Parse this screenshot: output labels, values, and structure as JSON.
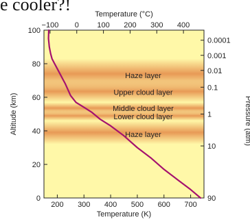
{
  "caption": {
    "text": "e cooler?!"
  },
  "chart_data": {
    "type": "line",
    "x_bottom": {
      "label": "Temperature (K)",
      "range": [
        150,
        750
      ],
      "ticks": [
        200,
        300,
        400,
        500,
        600,
        700
      ],
      "tick_labels": [
        "200",
        "300",
        "400",
        "500",
        "600",
        "700"
      ]
    },
    "x_top": {
      "label": "Temperature (°C)",
      "range": [
        -123,
        477
      ],
      "ticks": [
        -100,
        0,
        100,
        200,
        300,
        400
      ],
      "tick_labels": [
        "−100",
        "0",
        "100",
        "200",
        "300",
        "400"
      ]
    },
    "y_left": {
      "label": "Altitude (km)",
      "range": [
        0,
        100
      ],
      "ticks": [
        0,
        20,
        40,
        60,
        80,
        100
      ],
      "tick_labels": [
        "0",
        "20",
        "40",
        "60",
        "80",
        "100"
      ]
    },
    "y_right": {
      "label": "Pressure (atm)",
      "ticks": [
        {
          "altitude": 94,
          "label": "0.0001"
        },
        {
          "altitude": 85,
          "label": "0.001"
        },
        {
          "altitude": 76,
          "label": "0.01"
        },
        {
          "altitude": 66,
          "label": "0.1"
        },
        {
          "altitude": 50,
          "label": "1"
        },
        {
          "altitude": 31,
          "label": "10"
        },
        {
          "altitude": 0,
          "label": "90"
        }
      ]
    },
    "layers": [
      {
        "label": "Haze layer",
        "altitude_label": 73,
        "band": [
          65,
          83
        ]
      },
      {
        "label": "Upper cloud layer",
        "altitude_label": 63,
        "band": [
          57,
          70
        ]
      },
      {
        "label": "Middle cloud layer",
        "altitude_label": 53.5,
        "band": [
          50,
          57
        ]
      },
      {
        "label": "Lower cloud layer",
        "altitude_label": 48.5,
        "band": [
          46,
          52
        ]
      },
      {
        "label": "Haze layer",
        "altitude_label": 38,
        "band": [
          32,
          46
        ]
      }
    ],
    "series": [
      {
        "x": [
          168,
          167,
          170,
          175,
          180,
          190,
          200,
          210,
          220,
          230,
          250,
          270,
          300,
          330,
          360,
          400,
          450,
          500,
          550,
          600,
          650,
          700,
          737
        ],
        "y": [
          100,
          95,
          90,
          86,
          83,
          80,
          77,
          74,
          71,
          68,
          61,
          57,
          54,
          51,
          47,
          43,
          37,
          30,
          24,
          17,
          11,
          5,
          0
        ]
      }
    ],
    "colors": {
      "background": "#fff8a8",
      "band": "#e07a3a",
      "curve": "#a5126e"
    }
  }
}
